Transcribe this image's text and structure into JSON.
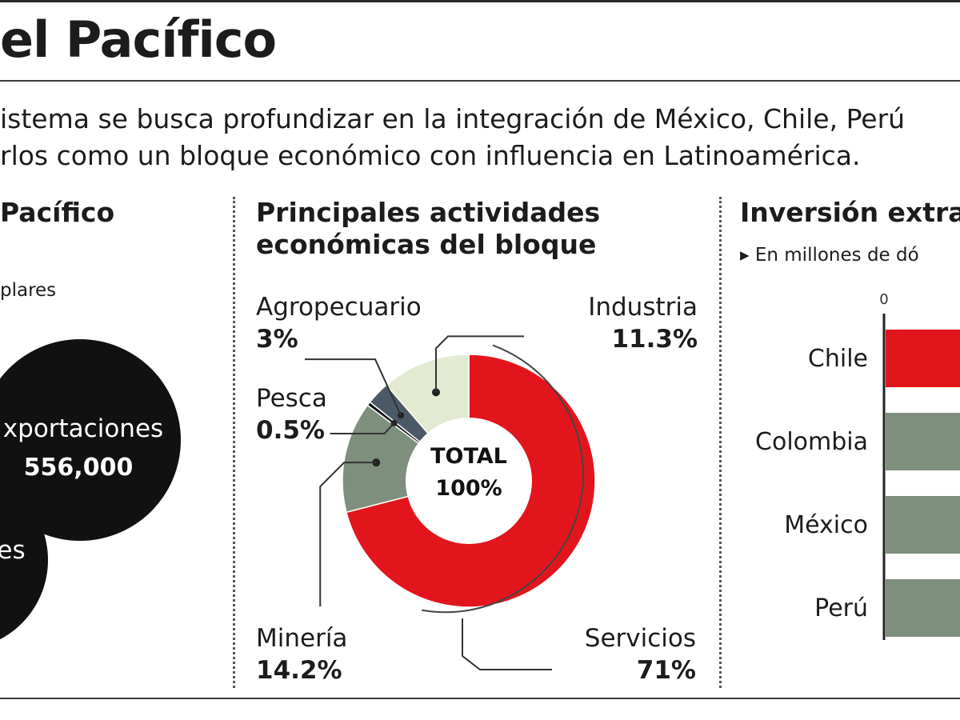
{
  "header": {
    "title": "el Pacífico",
    "intro_line1": "istema se busca profundizar en la integración de México, Chile, Perú",
    "intro_line2": "rlos como un bloque económico con influencia en Latinoamérica."
  },
  "left_panel": {
    "title": "Pacífico",
    "unit": "plares",
    "circle1_label": "xportaciones",
    "circle1_value": "556,000",
    "circle2_label": "es"
  },
  "middle_panel": {
    "title_line1": "Principales actividades",
    "title_line2": "económicas del bloque",
    "center_line1": "TOTAL",
    "center_line2": "100%"
  },
  "right_panel": {
    "title": "Inversión extra",
    "unit": "▸ En millones de dó",
    "axis_zero": "0"
  },
  "colors": {
    "red": "#e3151c",
    "gray_green": "#7e8f7d",
    "pale_green": "#e2ead2",
    "slate": "#4b5967",
    "black": "#111111"
  },
  "chart_data": [
    {
      "type": "pie",
      "title": "Principales actividades económicas del bloque",
      "center_label": "TOTAL 100%",
      "categories": [
        "Servicios",
        "Minería",
        "Pesca",
        "Agropecuario",
        "Industria"
      ],
      "values": [
        71,
        14.2,
        0.5,
        3,
        11.3
      ],
      "labels": [
        "71%",
        "14.2%",
        "0.5%",
        "3%",
        "11.3%"
      ]
    },
    {
      "type": "bar",
      "title": "Inversión extra",
      "categories": [
        "Chile",
        "Colombia",
        "México",
        "Perú"
      ],
      "x_tick_labels": [
        "0"
      ]
    }
  ]
}
